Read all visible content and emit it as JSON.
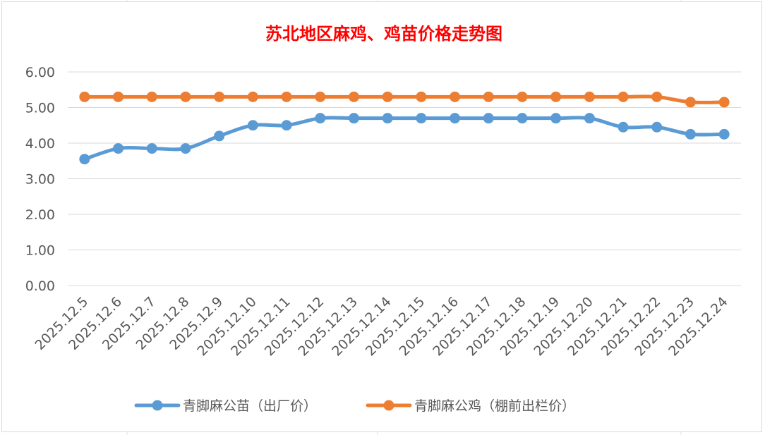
{
  "chart_data": {
    "type": "line",
    "title": "苏北地区麻鸡、鸡苗价格走势图",
    "xlabel": "",
    "ylabel": "",
    "ylim": [
      0,
      6
    ],
    "yticks": [
      "0.00",
      "1.00",
      "2.00",
      "3.00",
      "4.00",
      "5.00",
      "6.00"
    ],
    "grid": "horizontal",
    "legend_position": "bottom",
    "categories": [
      "2025.12.5",
      "2025.12.6",
      "2025.12.7",
      "2025.12.8",
      "2025.12.9",
      "2025.12.10",
      "2025.12.11",
      "2025.12.12",
      "2025.12.13",
      "2025.12.14",
      "2025.12.15",
      "2025.12.16",
      "2025.12.17",
      "2025.12.18",
      "2025.12.19",
      "2025.12.20",
      "2025.12.21",
      "2025.12.22",
      "2025.12.23",
      "2025.12.24"
    ],
    "series": [
      {
        "name": "青脚麻公苗（出厂价）",
        "color": "#5b9bd5",
        "values": [
          3.55,
          3.85,
          3.85,
          3.85,
          4.2,
          4.5,
          4.5,
          4.7,
          4.7,
          4.7,
          4.7,
          4.7,
          4.7,
          4.7,
          4.7,
          4.7,
          4.45,
          4.45,
          4.25,
          4.25
        ]
      },
      {
        "name": "青脚麻公鸡（棚前出栏价）",
        "color": "#ed7d31",
        "values": [
          5.3,
          5.3,
          5.3,
          5.3,
          5.3,
          5.3,
          5.3,
          5.3,
          5.3,
          5.3,
          5.3,
          5.3,
          5.3,
          5.3,
          5.3,
          5.3,
          5.3,
          5.3,
          5.15,
          5.15
        ]
      }
    ]
  }
}
